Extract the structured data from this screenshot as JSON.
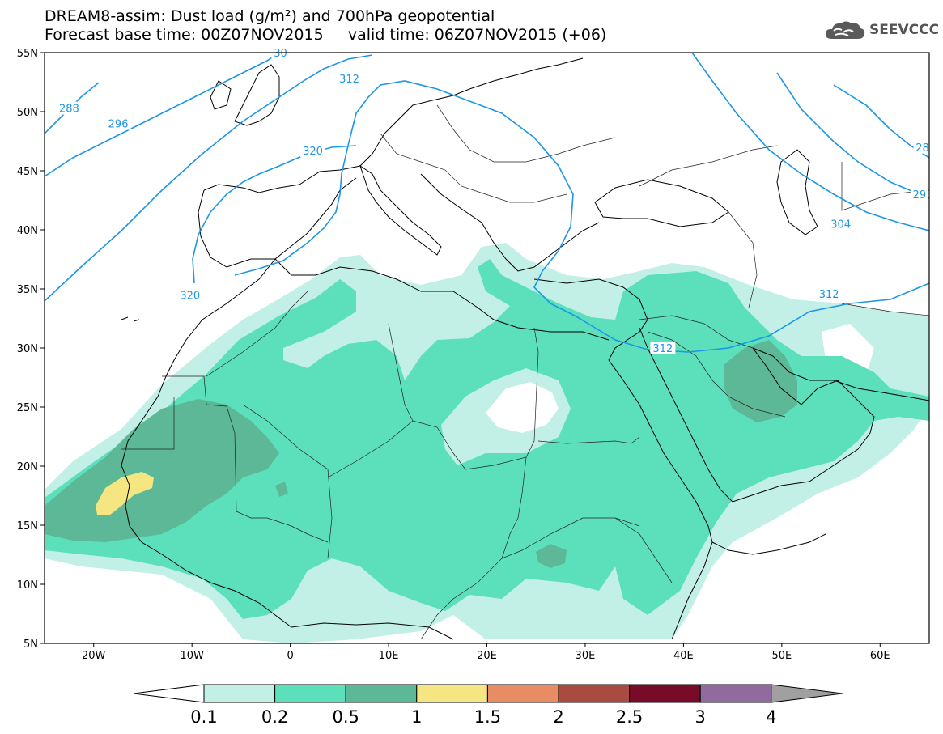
{
  "header": {
    "title_line1": "DREAM8-assim: Dust load (g/m²) and 700hPa geopotential",
    "title_line2": "Forecast base time: 00Z07NOV2015     valid time: 06Z07NOV2015 (+06)"
  },
  "logo": {
    "text": "SEEVCCC",
    "icon": "cloud-icon",
    "color": "#555555"
  },
  "map": {
    "lon_range": [
      -25,
      65
    ],
    "lat_range": [
      5,
      55
    ],
    "lat_labels": [
      "55N",
      "50N",
      "45N",
      "40N",
      "35N",
      "30N",
      "25N",
      "20N",
      "15N",
      "10N",
      "5N"
    ],
    "lon_labels": [
      "20W",
      "10W",
      "0",
      "10E",
      "20E",
      "30E",
      "40E",
      "50E",
      "60E"
    ],
    "contour_color": "#1e96e6",
    "contour_labels": [
      {
        "text": "288",
        "lon": -22.5,
        "lat": 50.3
      },
      {
        "text": "296",
        "lon": -17.5,
        "lat": 49.0
      },
      {
        "text": "320",
        "lon": 2.3,
        "lat": 46.7
      },
      {
        "text": "312",
        "lon": 6.0,
        "lat": 52.8
      },
      {
        "text": "320",
        "lon": -10.2,
        "lat": 34.5
      },
      {
        "text": "30",
        "lon": -1.0,
        "lat": 55.0
      },
      {
        "text": "312",
        "lon": 54.8,
        "lat": 34.6
      },
      {
        "text": "312",
        "lon": 37.9,
        "lat": 30.0
      },
      {
        "text": "304",
        "lon": 56.0,
        "lat": 40.5
      },
      {
        "text": "29",
        "lon": 64.0,
        "lat": 43.0
      },
      {
        "text": "28",
        "lon": 64.3,
        "lat": 47.0
      }
    ]
  },
  "colorbar": {
    "labels": [
      "0.1",
      "0.2",
      "0.5",
      "1",
      "1.5",
      "2",
      "2.5",
      "3",
      "4"
    ],
    "colors": [
      "#ffffff",
      "#c2f0e6",
      "#5ce0bc",
      "#5cb896",
      "#f5e682",
      "#e88c64",
      "#aa4b41",
      "#780c28",
      "#916aa0",
      "#a0a0a0"
    ]
  }
}
